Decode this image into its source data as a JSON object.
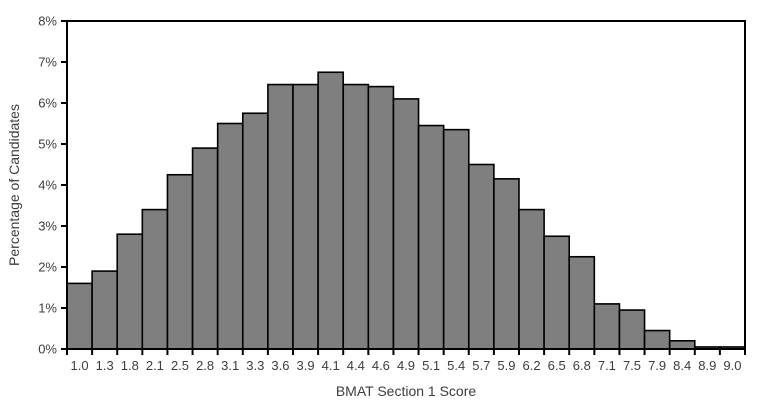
{
  "chart_data": {
    "type": "bar",
    "subtype": "histogram",
    "title": "",
    "xlabel": "BMAT Section 1 Score",
    "ylabel": "Percentage of Candidates",
    "categories": [
      "1.0",
      "1.3",
      "1.8",
      "2.1",
      "2.5",
      "2.8",
      "3.1",
      "3.3",
      "3.6",
      "3.9",
      "4.1",
      "4.4",
      "4.6",
      "4.9",
      "5.1",
      "5.4",
      "5.7",
      "5.9",
      "6.2",
      "6.5",
      "6.8",
      "7.1",
      "7.5",
      "7.9",
      "8.4",
      "8.9",
      "9.0"
    ],
    "values": [
      1.6,
      1.9,
      2.8,
      3.4,
      4.25,
      4.9,
      5.5,
      5.75,
      6.45,
      6.45,
      6.75,
      6.45,
      6.4,
      6.1,
      5.45,
      5.35,
      4.5,
      4.15,
      3.4,
      2.75,
      2.25,
      1.1,
      0.95,
      0.45,
      0.2,
      0.05,
      0.05
    ],
    "ylim": [
      0,
      8
    ],
    "y_tick_labels": [
      "0%",
      "1%",
      "2%",
      "3%",
      "4%",
      "5%",
      "6%",
      "7%",
      "8%"
    ],
    "legend": null,
    "grid": "off",
    "bar_gap": 0,
    "colors": {
      "bar_fill": "#7f7f7f",
      "bar_border": "#000000",
      "axis_line": "#000000",
      "text": "#3d3d3d",
      "background": "#ffffff"
    }
  }
}
